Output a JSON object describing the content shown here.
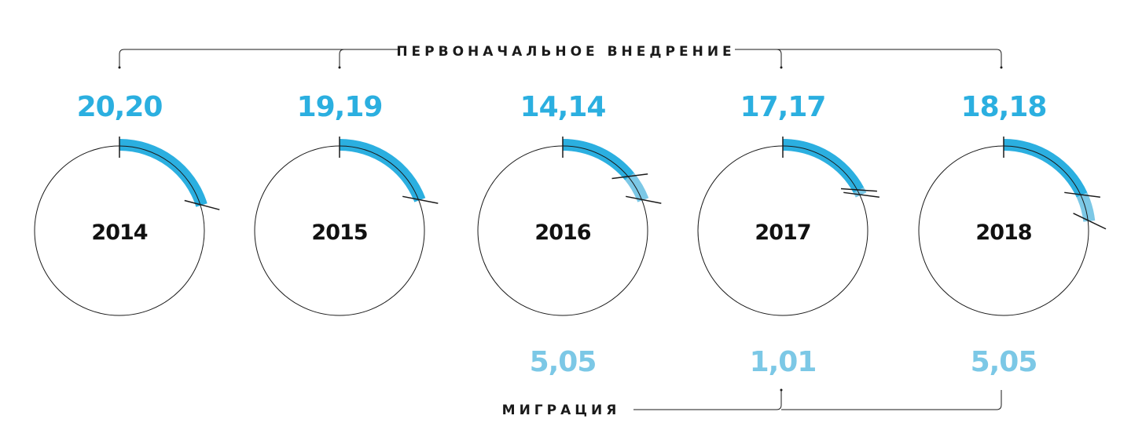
{
  "labels": {
    "initial_heading": "ПЕРВОНАЧАЛЬНОЕ ВНЕДРЕНИЕ",
    "migration_heading": "МИГРАЦИЯ"
  },
  "colors": {
    "initial": "#2bafe0",
    "migration": "#7cc8e6",
    "text": "#111111"
  },
  "chart_data": {
    "type": "radial-progress",
    "scale_max": 100,
    "categories": [
      "2014",
      "2015",
      "2016",
      "2017",
      "2018"
    ],
    "series": [
      {
        "name": "ПЕРВОНАЧАЛЬНОЕ ВНЕДРЕНИЕ",
        "values": [
          20.2,
          19.19,
          14.14,
          17.17,
          18.18
        ],
        "labels": [
          "20,20",
          "19,19",
          "14,14",
          "17,17",
          "18,18"
        ]
      },
      {
        "name": "МИГРАЦИЯ",
        "values": [
          null,
          null,
          5.05,
          1.01,
          5.05
        ],
        "labels": [
          "",
          "",
          "5,05",
          "1,01",
          "5,05"
        ]
      }
    ]
  }
}
